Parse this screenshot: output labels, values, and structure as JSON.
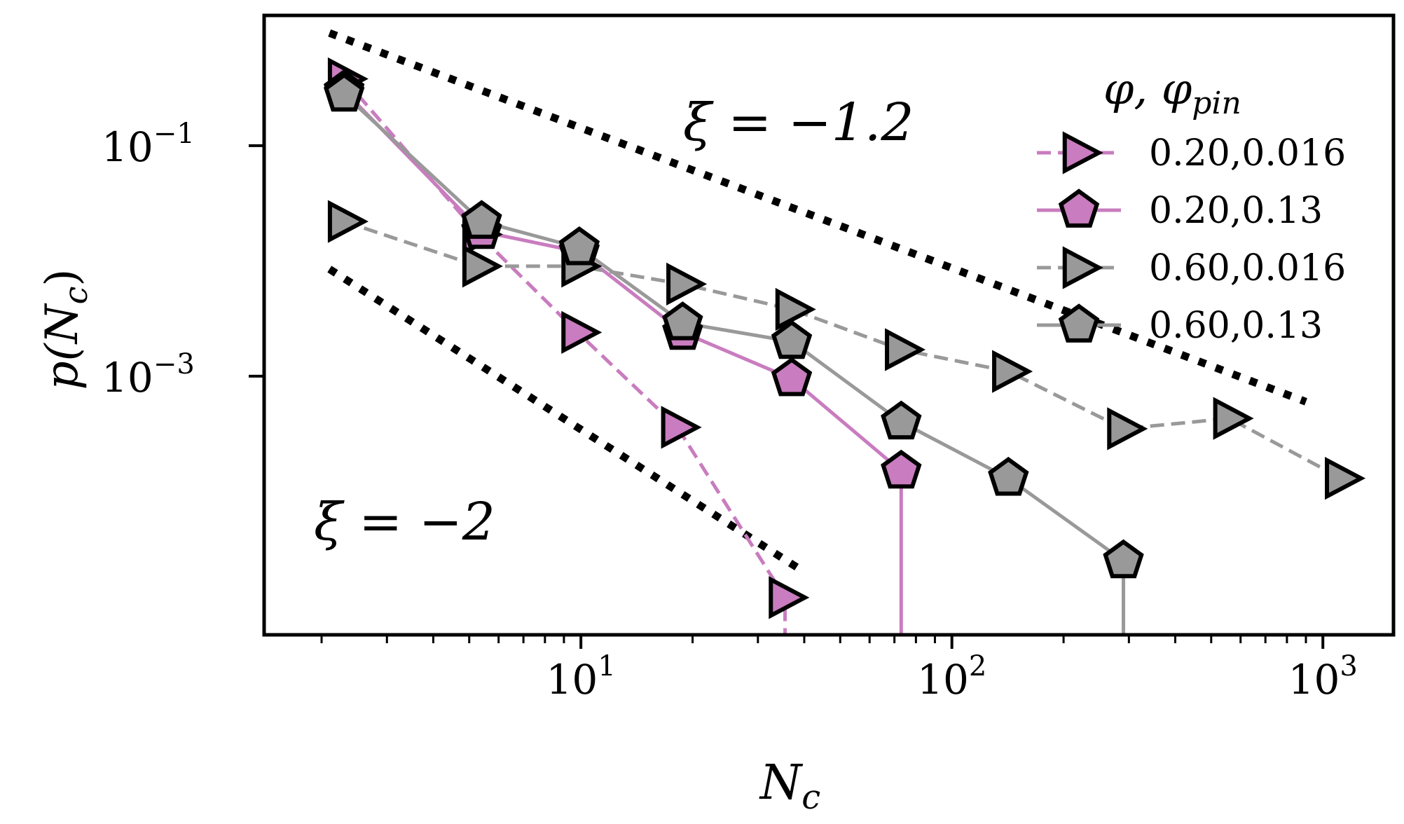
{
  "chart_data": {
    "type": "line",
    "xscale": "log",
    "yscale": "log",
    "xlim": [
      1.4,
      1550
    ],
    "ylim": [
      5.7e-06,
      1.35
    ],
    "xlabel": "N",
    "xlabel_sub": "c",
    "ylabel_parts": {
      "pre": "p(",
      "var": "N",
      "sub": "c",
      "post": ")"
    },
    "x_ticks": [
      {
        "value": 10,
        "base": "10",
        "exp": "1"
      },
      {
        "value": 100,
        "base": "10",
        "exp": "2"
      },
      {
        "value": 1000,
        "base": "10",
        "exp": "3"
      }
    ],
    "y_ticks": [
      {
        "value": 0.1,
        "base": "10",
        "exp": "−1"
      },
      {
        "value": 0.001,
        "base": "10",
        "exp": "−3"
      }
    ],
    "legend": {
      "placement": "top-right",
      "title": "φ, φ",
      "title_sub": "pin"
    },
    "annotations": [
      {
        "text": "ξ = −1.2",
        "x": 17,
        "y": 0.35
      },
      {
        "text": "ξ = −2",
        "x": 2.1,
        "y": 5.5e-05
      }
    ],
    "guides": [
      {
        "name": "slope -1.2",
        "x": [
          2.1,
          900
        ],
        "y": [
          0.95,
          0.0006
        ]
      },
      {
        "name": "slope -2",
        "x": [
          2.1,
          40
        ],
        "y": [
          0.0085,
          2e-05
        ]
      }
    ],
    "series": [
      {
        "name": "0.20,0.016",
        "color": "#c97cbf",
        "dash": "dashed",
        "marker": "triangle-right",
        "x": [
          2.3,
          5.3,
          9.8,
          18.2,
          35.5
        ],
        "y": [
          0.38,
          0.017,
          0.0024,
          0.00036,
          1.2e-05
        ],
        "drop_to_axis": true
      },
      {
        "name": "0.20,0.13",
        "color": "#c97cbf",
        "dash": "solid",
        "marker": "pentagon",
        "x": [
          2.3,
          5.4,
          9.9,
          18.8,
          37,
          73
        ],
        "y": [
          0.3,
          0.018,
          0.012,
          0.0024,
          0.00095,
          0.00015
        ],
        "drop_to_axis": true
      },
      {
        "name": "0.60,0.016",
        "color": "#999999",
        "dash": "dashed",
        "marker": "triangle-right",
        "x": [
          2.3,
          5.3,
          9.8,
          18.8,
          37,
          73,
          142,
          290,
          560,
          1120
        ],
        "y": [
          0.022,
          0.009,
          0.009,
          0.0063,
          0.0038,
          0.0017,
          0.0011,
          0.00035,
          0.00043,
          0.00013
        ],
        "drop_to_axis": false
      },
      {
        "name": "0.60,0.13",
        "color": "#999999",
        "dash": "solid",
        "marker": "pentagon",
        "x": [
          2.3,
          5.4,
          9.9,
          18.8,
          37,
          73,
          142,
          290
        ],
        "y": [
          0.28,
          0.022,
          0.013,
          0.0029,
          0.002,
          0.0004,
          0.00013,
          2.5e-05
        ],
        "drop_to_axis": true
      }
    ]
  }
}
